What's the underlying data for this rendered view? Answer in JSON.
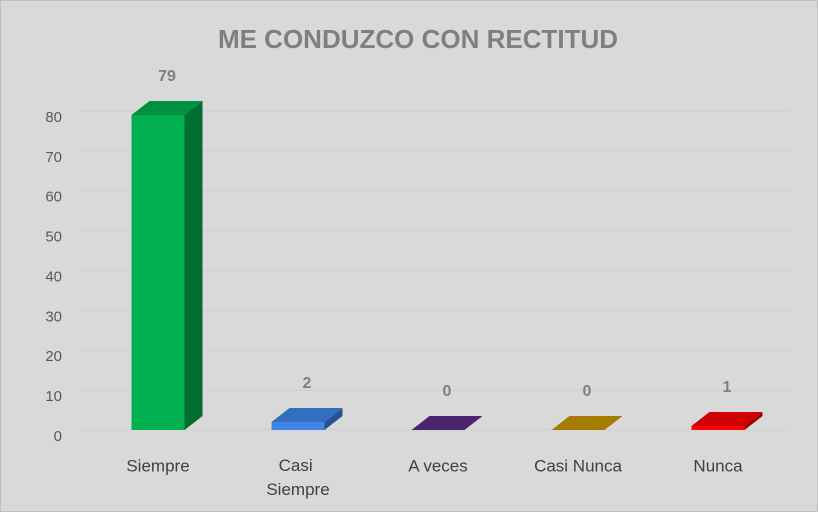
{
  "chart_data": {
    "type": "bar3d",
    "title": "ME CONDUZCO CON RECTITUD",
    "categories": [
      "Siempre",
      "Casi Siempre",
      "A veces",
      "Casi Nunca",
      "Nunca"
    ],
    "values": [
      79,
      2,
      0,
      0,
      1
    ],
    "colors": [
      "#00b050",
      "#3f86e8",
      "#5a2c86",
      "#c99700",
      "#ff0000"
    ],
    "ylim": [
      0,
      80
    ],
    "yticks": [
      0,
      10,
      20,
      30,
      40,
      50,
      60,
      70,
      80
    ],
    "grid": true
  }
}
